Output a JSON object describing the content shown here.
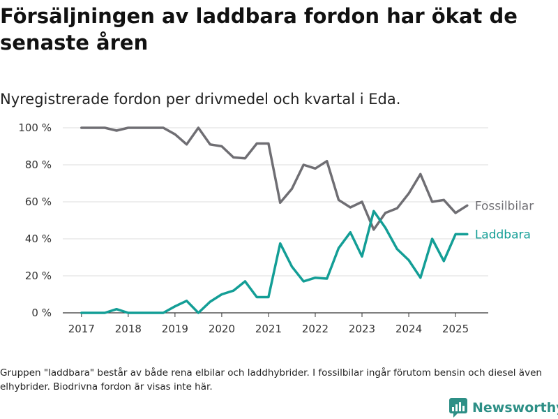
{
  "title": "Försäljningen av laddbara fordon har ökat de senaste åren",
  "subtitle": "Nyregistrerade fordon per drivmedel och kvartal i Eda.",
  "footnote": "Gruppen \"laddbara\" består av både rena elbilar och laddhybrider. I fossilbilar ingår förutom bensin och diesel även elhybrider. Biodrivna fordon är visas inte här.",
  "brand": {
    "name": "Newsworthy",
    "icon": "newsworthy-logo-icon",
    "color": "#2d8f86"
  },
  "chart_data": {
    "type": "line",
    "x_ticks": [
      "2017",
      "2018",
      "2019",
      "2020",
      "2021",
      "2022",
      "2023",
      "2024",
      "2025"
    ],
    "y_ticks": [
      "0 %",
      "20 %",
      "40 %",
      "60 %",
      "80 %",
      "100 %"
    ],
    "ylim": [
      0,
      100
    ],
    "xlim": [
      2016.6,
      2025.7
    ],
    "grid": true,
    "x": [
      2017.0,
      2017.25,
      2017.5,
      2017.75,
      2018.0,
      2018.25,
      2018.5,
      2018.75,
      2019.0,
      2019.25,
      2019.5,
      2019.75,
      2020.0,
      2020.25,
      2020.5,
      2020.75,
      2021.0,
      2021.25,
      2021.5,
      2021.75,
      2022.0,
      2022.25,
      2022.5,
      2022.75,
      2023.0,
      2023.25,
      2023.5,
      2023.75,
      2024.0,
      2024.25,
      2024.5,
      2024.75,
      2025.0,
      2025.25
    ],
    "series": [
      {
        "name": "Fossilbilar",
        "color": "#6f6e73",
        "values": [
          100,
          100,
          100,
          98.5,
          100,
          100,
          100,
          100,
          96.5,
          91,
          100,
          91,
          90,
          84,
          83.5,
          91.5,
          91.5,
          59.5,
          67,
          80,
          78,
          82,
          61,
          57,
          60,
          45,
          54,
          56.5,
          64.5,
          75,
          60,
          61,
          54,
          58
        ]
      },
      {
        "name": "Laddbara",
        "color": "#139e96",
        "values": [
          0,
          0,
          0,
          2,
          0,
          0,
          0,
          0,
          3.5,
          6.5,
          0,
          6,
          10,
          12,
          17,
          8.5,
          8.5,
          37.5,
          25,
          17,
          19,
          18.5,
          35,
          43.5,
          30.5,
          55,
          46,
          34.5,
          28.5,
          19,
          40,
          28,
          42.5,
          42.5
        ]
      }
    ]
  }
}
